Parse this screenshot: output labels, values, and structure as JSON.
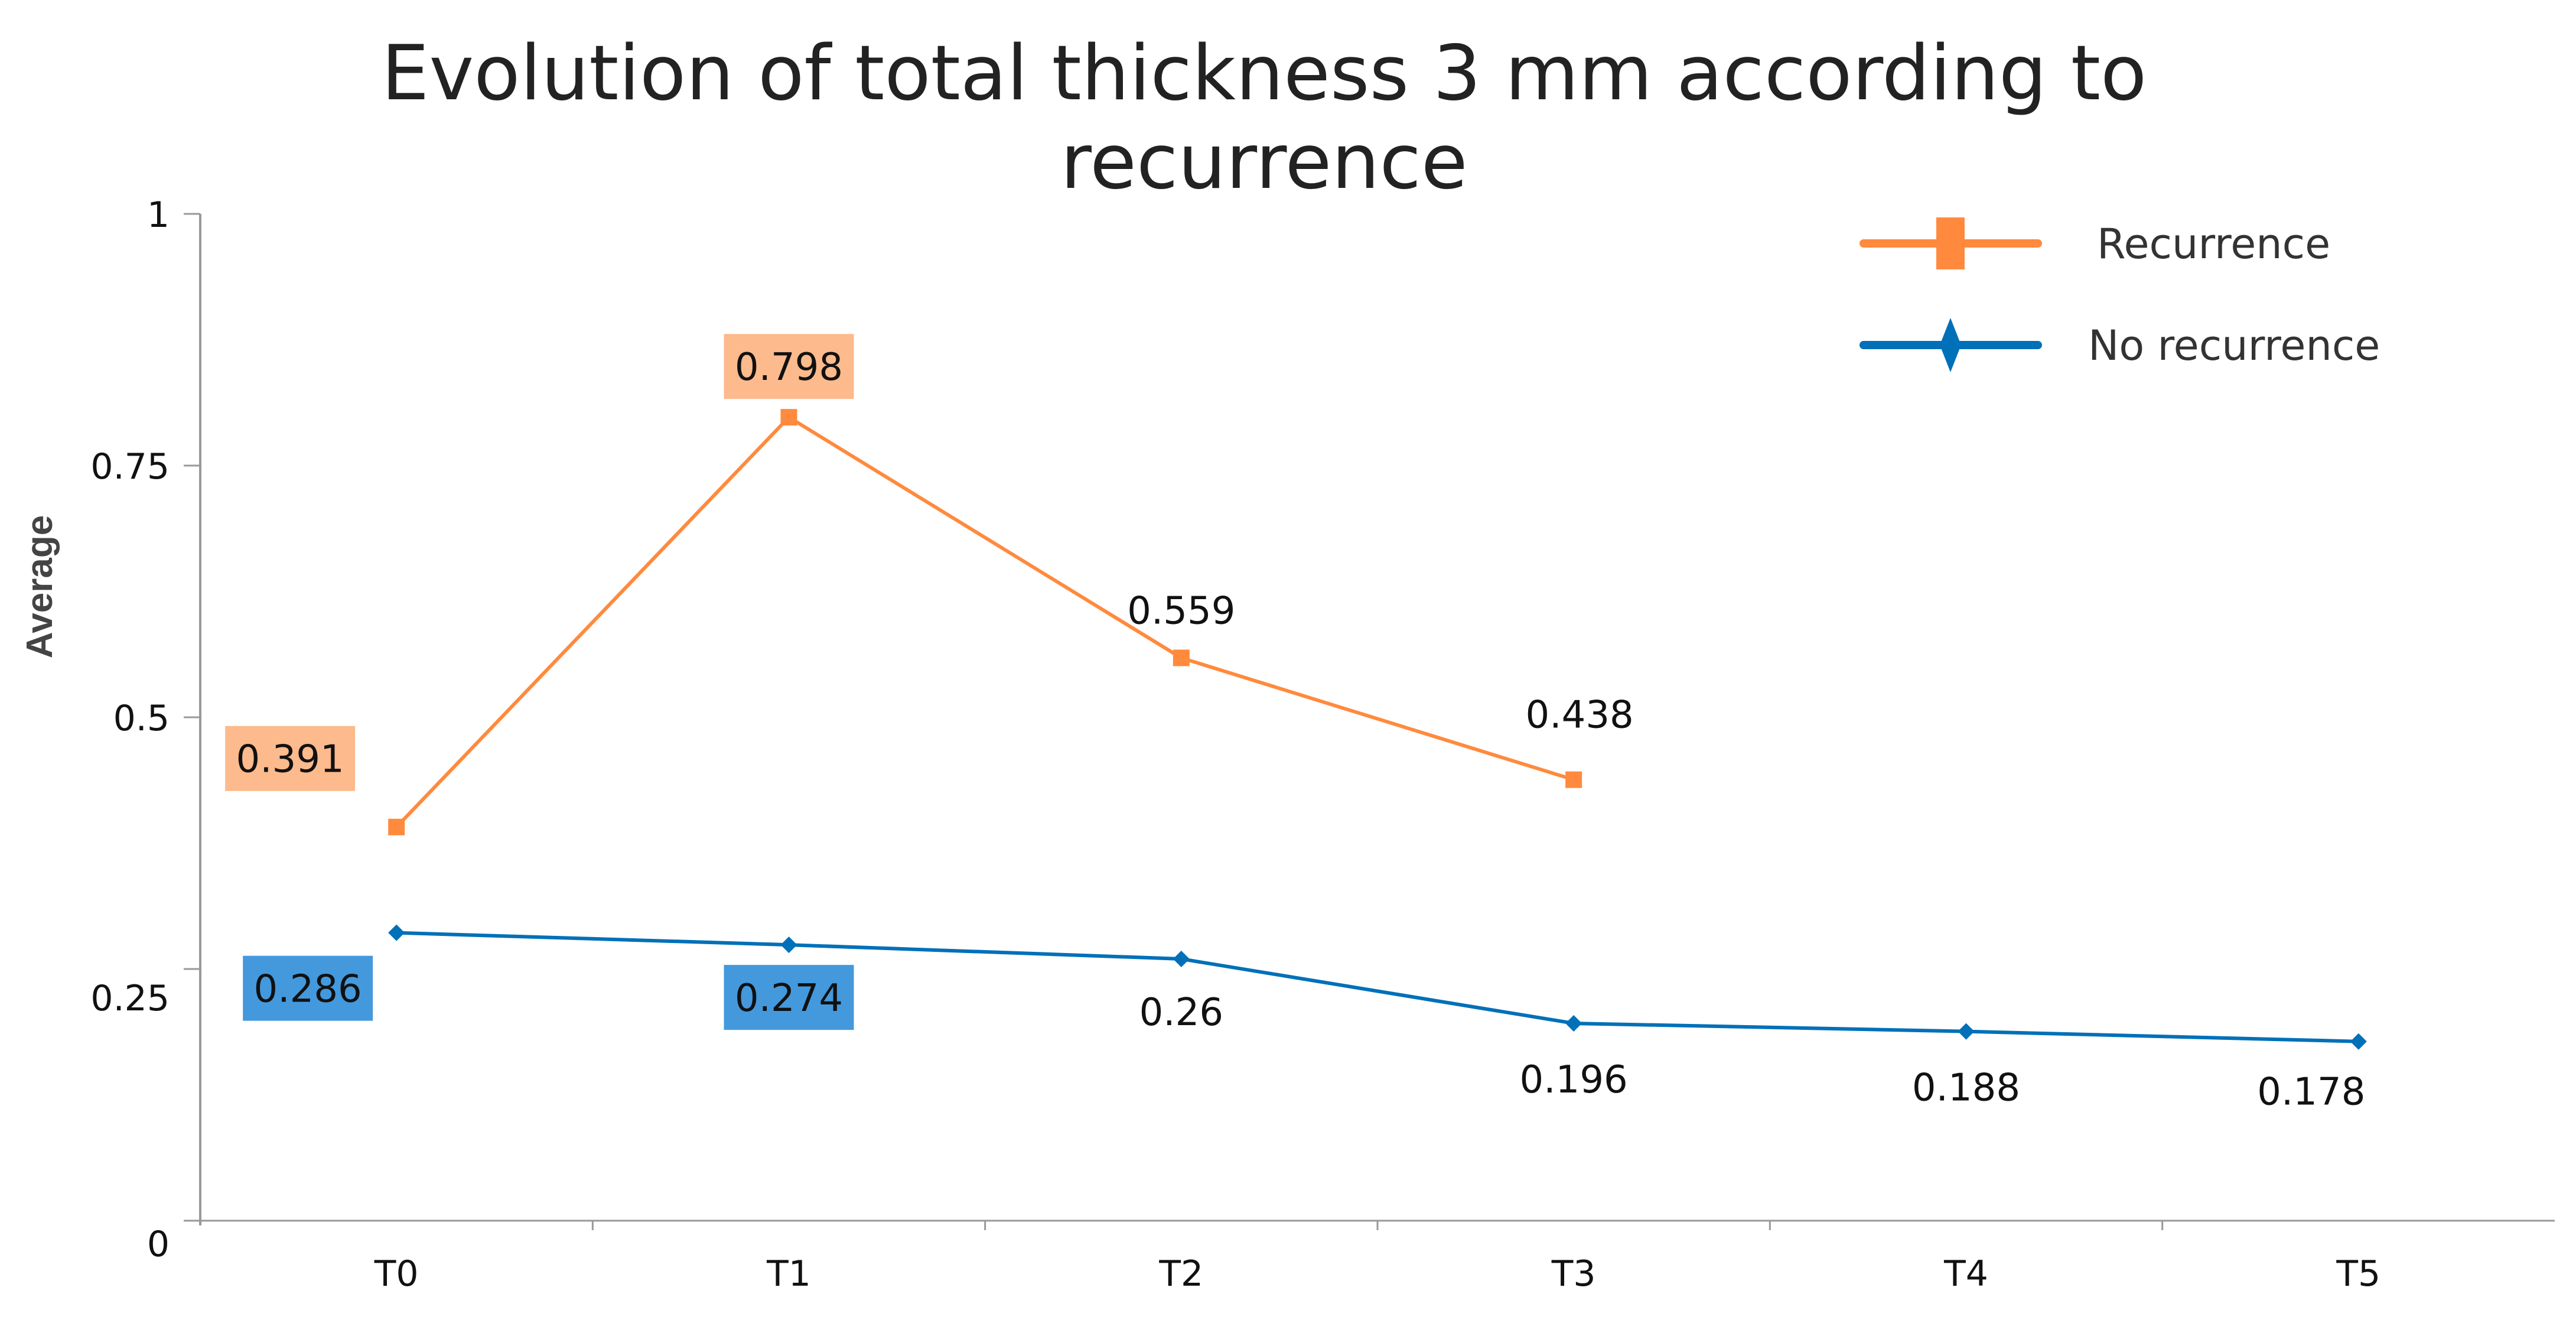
{
  "chart_data": {
    "type": "line",
    "title": "Evolution of total thickness 3 mm according to recurrence",
    "title_lines": [
      "Evolution of total thickness 3 mm according to",
      "recurrence"
    ],
    "xlabel": "",
    "ylabel": "Average",
    "categories": [
      "T0",
      "T1",
      "T2",
      "T3",
      "T4",
      "T5"
    ],
    "ylim": [
      0,
      1
    ],
    "yticks": [
      0,
      0.25,
      0.5,
      0.75,
      1
    ],
    "ytick_labels": [
      "0",
      "0.25",
      "0.5",
      "0.75",
      "1"
    ],
    "grid": false,
    "legend_position": "top-right",
    "series": [
      {
        "name": "Recurrence",
        "marker": "square",
        "color": "#FF8A3D",
        "label_box_color": "#FDBA8C",
        "values": [
          0.391,
          0.798,
          0.559,
          0.438,
          null,
          null
        ],
        "labels": [
          "0.391",
          "0.798",
          "0.559",
          "0.438",
          "",
          ""
        ],
        "boxed": [
          true,
          true,
          false,
          false,
          false,
          false
        ]
      },
      {
        "name": "No recurrence",
        "marker": "diamond",
        "color": "#0070B8",
        "label_box_color": "#4499DD",
        "values": [
          0.286,
          0.274,
          0.26,
          0.196,
          0.188,
          0.178
        ],
        "labels": [
          "0.286",
          "0.274",
          "0.26",
          "0.196",
          "0.188",
          "0.178"
        ],
        "boxed": [
          true,
          true,
          false,
          false,
          false,
          false
        ]
      }
    ]
  }
}
